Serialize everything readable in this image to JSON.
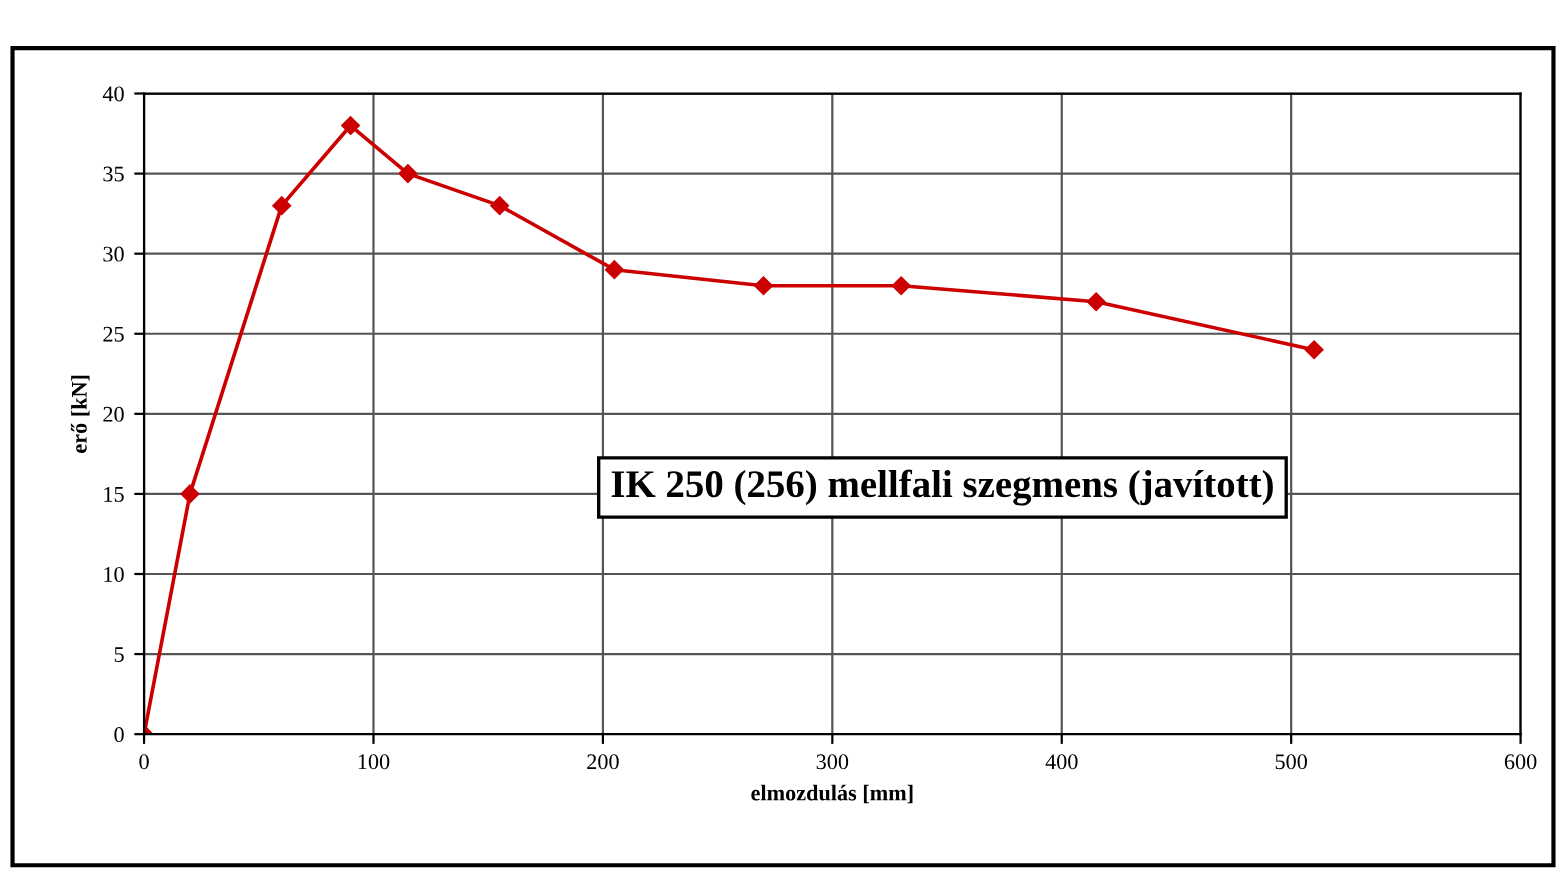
{
  "chart_data": {
    "type": "line",
    "xlabel": "elmozdulás [mm]",
    "ylabel": "erő [kN]",
    "x": [
      0,
      20,
      60,
      90,
      115,
      155,
      205,
      270,
      330,
      415,
      510
    ],
    "series": [
      {
        "color": "#cc0000",
        "values": [
          0,
          15,
          33,
          38,
          35,
          33,
          29,
          28,
          28,
          27,
          24
        ]
      }
    ],
    "xlim": [
      0,
      600
    ],
    "xticks": [
      0,
      100,
      200,
      300,
      400,
      500,
      600
    ],
    "ylim": [
      0,
      40
    ],
    "yticks": [
      0,
      5,
      10,
      15,
      20,
      25,
      30,
      35,
      40
    ],
    "grid": true,
    "marker": "diamond",
    "line_style": "solid",
    "annotations": [
      "IK 250 (256) mellfali szegmens (javított)"
    ]
  }
}
